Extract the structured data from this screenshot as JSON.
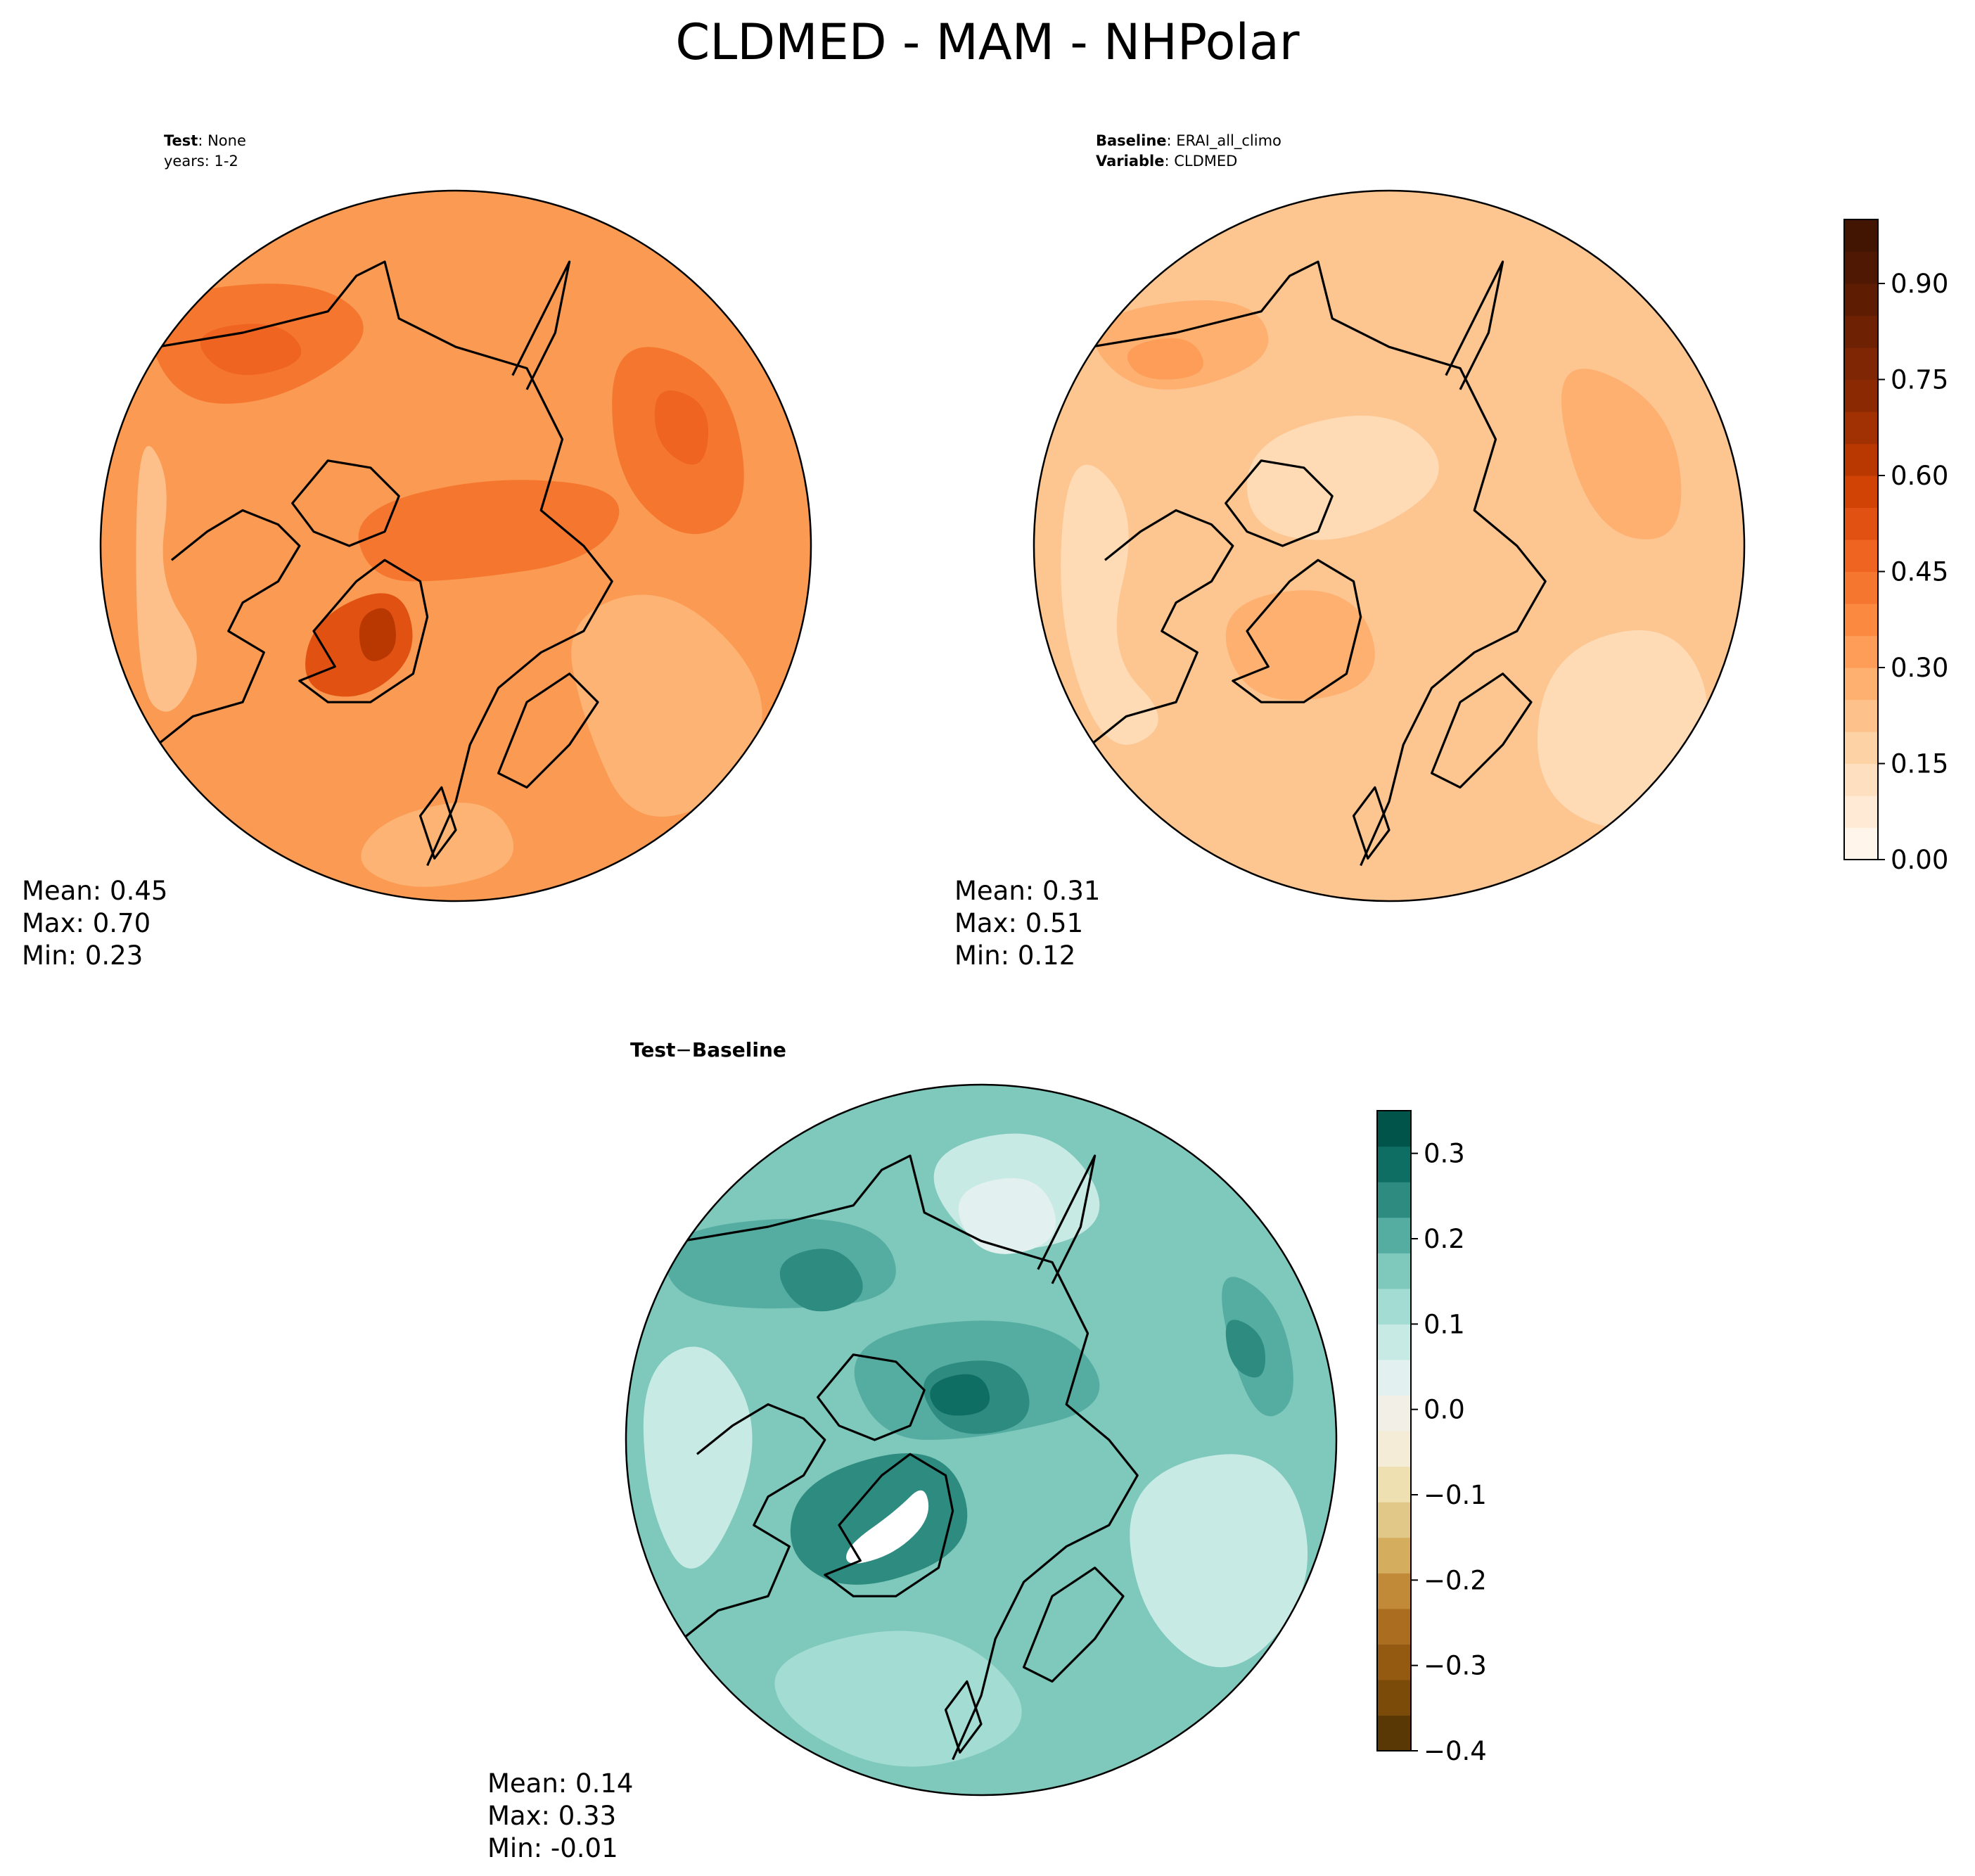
{
  "figure": {
    "title": "CLDMED - MAM - NHPolar"
  },
  "chart_data": [
    {
      "type": "heatmap",
      "projection": "north-polar-stereographic",
      "panel": "test",
      "header": {
        "label1": "Test",
        "value1": "None",
        "line2": "years: 1-2"
      },
      "stats": {
        "mean": "Mean:  0.45",
        "max": "Max:  0.70",
        "min": "Min:  0.23"
      },
      "values": {
        "mean": 0.45,
        "max": 0.7,
        "min": 0.23
      },
      "colormap": "Oranges",
      "shared_colorbar": "absolute"
    },
    {
      "type": "heatmap",
      "projection": "north-polar-stereographic",
      "panel": "baseline",
      "header": {
        "label1": "Baseline",
        "value1": "ERAI_all_climo",
        "label2": "Variable",
        "value2": "CLDMED"
      },
      "stats": {
        "mean": "Mean:  0.31",
        "max": "Max:  0.51",
        "min": "Min:  0.12"
      },
      "values": {
        "mean": 0.31,
        "max": 0.51,
        "min": 0.12
      },
      "colormap": "Oranges",
      "shared_colorbar": "absolute"
    },
    {
      "type": "heatmap",
      "projection": "north-polar-stereographic",
      "panel": "difference",
      "header": {
        "label1": "Test",
        "dash": "−",
        "label2": "Baseline"
      },
      "stats": {
        "mean": "Mean:  0.14",
        "max": "Max:  0.33",
        "min": "Min: -0.01"
      },
      "values": {
        "mean": 0.14,
        "max": 0.33,
        "min": -0.01
      },
      "colormap": "BrBG",
      "shared_colorbar": "difference"
    }
  ],
  "colorbars": {
    "absolute": {
      "range": [
        0,
        1
      ],
      "ticks": [
        {
          "value": 0.0,
          "label": "0.00"
        },
        {
          "value": 0.15,
          "label": "0.15"
        },
        {
          "value": 0.3,
          "label": "0.30"
        },
        {
          "value": 0.45,
          "label": "0.45"
        },
        {
          "value": 0.6,
          "label": "0.60"
        },
        {
          "value": 0.75,
          "label": "0.75"
        },
        {
          "value": 0.9,
          "label": "0.90"
        }
      ],
      "colors": [
        "#fff5eb",
        "#feead5",
        "#fee0c0",
        "#fdd2a5",
        "#fdc28b",
        "#fdb070",
        "#fd9d57",
        "#fb8940",
        "#f5772f",
        "#ee6420",
        "#e15212",
        "#d04305",
        "#b93802",
        "#a13003",
        "#8b2903",
        "#7f2704",
        "#6e2103",
        "#5e1c03",
        "#4f1802",
        "#421402"
      ]
    },
    "difference": {
      "range": [
        -0.4,
        0.35
      ],
      "ticks": [
        {
          "value": -0.4,
          "label": "−0.4"
        },
        {
          "value": -0.3,
          "label": "−0.3"
        },
        {
          "value": -0.2,
          "label": "−0.2"
        },
        {
          "value": -0.1,
          "label": "−0.1"
        },
        {
          "value": 0.0,
          "label": "0.0"
        },
        {
          "value": 0.1,
          "label": "0.1"
        },
        {
          "value": 0.2,
          "label": "0.2"
        },
        {
          "value": 0.3,
          "label": "0.3"
        }
      ],
      "colors": [
        "#5a3805",
        "#7b4b09",
        "#955a12",
        "#ab6d1f",
        "#c18a39",
        "#d4ad5e",
        "#e2c888",
        "#efe0b2",
        "#f4ecd6",
        "#f2efe6",
        "#e2f1ef",
        "#c8eae5",
        "#a3dcd3",
        "#7ec8bc",
        "#55ada2",
        "#2e8b80",
        "#0f6e63",
        "#01544a"
      ]
    }
  },
  "map_fields": {
    "test": {
      "background": "#fb9a52",
      "blobs": [
        {
          "color": "#fdc08a",
          "points": [
            [
              0.05,
              0.33
            ],
            [
              0.1,
              0.4
            ],
            [
              0.08,
              0.55
            ],
            [
              0.15,
              0.65
            ],
            [
              0.1,
              0.75
            ],
            [
              0.05,
              0.7
            ]
          ]
        },
        {
          "color": "#fdb373",
          "points": [
            [
              0.65,
              0.6
            ],
            [
              0.8,
              0.55
            ],
            [
              0.95,
              0.7
            ],
            [
              0.9,
              0.85
            ],
            [
              0.75,
              0.9
            ],
            [
              0.68,
              0.75
            ]
          ]
        },
        {
          "color": "#fdb373",
          "points": [
            [
              0.4,
              0.88
            ],
            [
              0.55,
              0.85
            ],
            [
              0.6,
              0.95
            ],
            [
              0.45,
              0.99
            ],
            [
              0.35,
              0.95
            ]
          ]
        },
        {
          "color": "#f5772f",
          "points": [
            [
              0.05,
              0.15
            ],
            [
              0.3,
              0.12
            ],
            [
              0.4,
              0.2
            ],
            [
              0.25,
              0.3
            ],
            [
              0.1,
              0.3
            ]
          ]
        },
        {
          "color": "#f5772f",
          "points": [
            [
              0.72,
              0.2
            ],
            [
              0.88,
              0.25
            ],
            [
              0.92,
              0.45
            ],
            [
              0.82,
              0.5
            ],
            [
              0.72,
              0.4
            ]
          ]
        },
        {
          "color": "#f5772f",
          "points": [
            [
              0.35,
              0.45
            ],
            [
              0.55,
              0.4
            ],
            [
              0.75,
              0.42
            ],
            [
              0.7,
              0.52
            ],
            [
              0.5,
              0.55
            ],
            [
              0.38,
              0.55
            ]
          ]
        },
        {
          "color": "#ee6420",
          "points": [
            [
              0.12,
              0.2
            ],
            [
              0.25,
              0.18
            ],
            [
              0.3,
              0.24
            ],
            [
              0.18,
              0.27
            ]
          ]
        },
        {
          "color": "#ee6420",
          "points": [
            [
              0.78,
              0.27
            ],
            [
              0.86,
              0.3
            ],
            [
              0.85,
              0.4
            ],
            [
              0.78,
              0.36
            ]
          ]
        },
        {
          "color": "#e15212",
          "points": [
            [
              0.3,
              0.6
            ],
            [
              0.42,
              0.55
            ],
            [
              0.45,
              0.65
            ],
            [
              0.37,
              0.72
            ],
            [
              0.28,
              0.7
            ]
          ]
        },
        {
          "color": "#b93802",
          "points": [
            [
              0.36,
              0.6
            ],
            [
              0.41,
              0.58
            ],
            [
              0.42,
              0.65
            ],
            [
              0.37,
              0.67
            ]
          ]
        }
      ]
    },
    "baseline": {
      "background": "#fdc590",
      "blobs": [
        {
          "color": "#fedbb5",
          "points": [
            [
              0.05,
              0.35
            ],
            [
              0.15,
              0.45
            ],
            [
              0.1,
              0.65
            ],
            [
              0.2,
              0.75
            ],
            [
              0.1,
              0.8
            ],
            [
              0.03,
              0.6
            ]
          ]
        },
        {
          "color": "#fedbb5",
          "points": [
            [
              0.72,
              0.65
            ],
            [
              0.9,
              0.6
            ],
            [
              0.97,
              0.75
            ],
            [
              0.85,
              0.92
            ],
            [
              0.7,
              0.85
            ]
          ]
        },
        {
          "color": "#fedbb5",
          "points": [
            [
              0.3,
              0.35
            ],
            [
              0.5,
              0.3
            ],
            [
              0.6,
              0.4
            ],
            [
              0.45,
              0.5
            ],
            [
              0.3,
              0.48
            ]
          ]
        },
        {
          "color": "#fdb070",
          "points": [
            [
              0.05,
              0.18
            ],
            [
              0.3,
              0.14
            ],
            [
              0.35,
              0.24
            ],
            [
              0.15,
              0.3
            ]
          ]
        },
        {
          "color": "#fdb070",
          "points": [
            [
              0.72,
              0.22
            ],
            [
              0.9,
              0.3
            ],
            [
              0.92,
              0.5
            ],
            [
              0.78,
              0.48
            ]
          ]
        },
        {
          "color": "#fdb070",
          "points": [
            [
              0.25,
              0.58
            ],
            [
              0.45,
              0.55
            ],
            [
              0.5,
              0.7
            ],
            [
              0.3,
              0.73
            ]
          ]
        },
        {
          "color": "#fd9d57",
          "points": [
            [
              0.12,
              0.22
            ],
            [
              0.22,
              0.2
            ],
            [
              0.25,
              0.26
            ],
            [
              0.15,
              0.27
            ]
          ]
        }
      ]
    },
    "difference": {
      "background": "#7ec8bc",
      "blobs": [
        {
          "color": "#c8eae5",
          "points": [
            [
              0.02,
              0.4
            ],
            [
              0.12,
              0.35
            ],
            [
              0.2,
              0.5
            ],
            [
              0.1,
              0.72
            ],
            [
              0.03,
              0.6
            ]
          ]
        },
        {
          "color": "#c8eae5",
          "points": [
            [
              0.7,
              0.55
            ],
            [
              0.92,
              0.5
            ],
            [
              0.98,
              0.7
            ],
            [
              0.85,
              0.85
            ],
            [
              0.72,
              0.75
            ]
          ]
        },
        {
          "color": "#c8eae5",
          "points": [
            [
              0.4,
              0.1
            ],
            [
              0.6,
              0.05
            ],
            [
              0.7,
              0.2
            ],
            [
              0.5,
              0.25
            ]
          ]
        },
        {
          "color": "#e2f1ef",
          "points": [
            [
              0.45,
              0.15
            ],
            [
              0.58,
              0.12
            ],
            [
              0.62,
              0.22
            ],
            [
              0.5,
              0.25
            ]
          ]
        },
        {
          "color": "#a3dcd3",
          "points": [
            [
              0.2,
              0.8
            ],
            [
              0.45,
              0.75
            ],
            [
              0.6,
              0.9
            ],
            [
              0.4,
              0.98
            ],
            [
              0.22,
              0.9
            ]
          ]
        },
        {
          "color": "#55ada2",
          "points": [
            [
              0.05,
              0.2
            ],
            [
              0.35,
              0.18
            ],
            [
              0.4,
              0.3
            ],
            [
              0.2,
              0.32
            ],
            [
              0.06,
              0.3
            ]
          ]
        },
        {
          "color": "#55ada2",
          "points": [
            [
              0.3,
              0.35
            ],
            [
              0.6,
              0.32
            ],
            [
              0.7,
              0.45
            ],
            [
              0.5,
              0.5
            ],
            [
              0.35,
              0.5
            ]
          ]
        },
        {
          "color": "#55ada2",
          "points": [
            [
              0.82,
              0.25
            ],
            [
              0.92,
              0.3
            ],
            [
              0.95,
              0.45
            ],
            [
              0.88,
              0.48
            ]
          ]
        },
        {
          "color": "#2e8b80",
          "points": [
            [
              0.2,
              0.25
            ],
            [
              0.3,
              0.22
            ],
            [
              0.35,
              0.3
            ],
            [
              0.25,
              0.33
            ]
          ]
        },
        {
          "color": "#2e8b80",
          "points": [
            [
              0.4,
              0.4
            ],
            [
              0.55,
              0.38
            ],
            [
              0.58,
              0.48
            ],
            [
              0.45,
              0.5
            ]
          ]
        },
        {
          "color": "#2e8b80",
          "points": [
            [
              0.25,
              0.55
            ],
            [
              0.45,
              0.5
            ],
            [
              0.5,
              0.65
            ],
            [
              0.32,
              0.72
            ],
            [
              0.22,
              0.66
            ]
          ]
        },
        {
          "color": "#2e8b80",
          "points": [
            [
              0.84,
              0.32
            ],
            [
              0.9,
              0.35
            ],
            [
              0.9,
              0.42
            ],
            [
              0.85,
              0.4
            ]
          ]
        },
        {
          "color": "#0f6e63",
          "points": [
            [
              0.42,
              0.42
            ],
            [
              0.5,
              0.4
            ],
            [
              0.52,
              0.46
            ],
            [
              0.44,
              0.47
            ]
          ]
        },
        {
          "color": "#ffffff",
          "points": [
            [
              0.31,
              0.65
            ],
            [
              0.38,
              0.6
            ],
            [
              0.42,
              0.56
            ],
            [
              0.43,
              0.61
            ],
            [
              0.38,
              0.66
            ],
            [
              0.31,
              0.68
            ]
          ]
        }
      ]
    }
  },
  "coastline": {
    "stroke": "#000000",
    "greenland": [
      [
        0.33,
        0.67
      ],
      [
        0.3,
        0.62
      ],
      [
        0.36,
        0.55
      ],
      [
        0.4,
        0.52
      ],
      [
        0.45,
        0.55
      ],
      [
        0.46,
        0.6
      ],
      [
        0.44,
        0.68
      ],
      [
        0.38,
        0.72
      ],
      [
        0.32,
        0.72
      ],
      [
        0.28,
        0.69
      ]
    ],
    "canada": [
      [
        0.1,
        0.52
      ],
      [
        0.15,
        0.48
      ],
      [
        0.2,
        0.45
      ],
      [
        0.25,
        0.47
      ],
      [
        0.28,
        0.5
      ],
      [
        0.25,
        0.55
      ],
      [
        0.2,
        0.58
      ],
      [
        0.18,
        0.62
      ],
      [
        0.23,
        0.65
      ],
      [
        0.2,
        0.72
      ],
      [
        0.13,
        0.74
      ],
      [
        0.08,
        0.78
      ]
    ],
    "arctic_islands": [
      [
        0.27,
        0.44
      ],
      [
        0.32,
        0.38
      ],
      [
        0.38,
        0.39
      ],
      [
        0.42,
        0.43
      ],
      [
        0.4,
        0.48
      ],
      [
        0.35,
        0.5
      ],
      [
        0.3,
        0.48
      ]
    ],
    "eurasia": [
      [
        0.08,
        0.22
      ],
      [
        0.2,
        0.2
      ],
      [
        0.32,
        0.17
      ],
      [
        0.36,
        0.12
      ],
      [
        0.4,
        0.1
      ],
      [
        0.42,
        0.18
      ],
      [
        0.5,
        0.22
      ],
      [
        0.6,
        0.25
      ],
      [
        0.65,
        0.35
      ],
      [
        0.62,
        0.45
      ],
      [
        0.68,
        0.5
      ],
      [
        0.72,
        0.55
      ],
      [
        0.68,
        0.62
      ],
      [
        0.62,
        0.65
      ],
      [
        0.56,
        0.7
      ],
      [
        0.52,
        0.78
      ],
      [
        0.5,
        0.86
      ],
      [
        0.46,
        0.95
      ]
    ],
    "scandinavia": [
      [
        0.56,
        0.82
      ],
      [
        0.6,
        0.72
      ],
      [
        0.66,
        0.68
      ],
      [
        0.7,
        0.72
      ],
      [
        0.66,
        0.78
      ],
      [
        0.6,
        0.84
      ]
    ],
    "novaya_zemlya": [
      [
        0.58,
        0.26
      ],
      [
        0.62,
        0.18
      ],
      [
        0.66,
        0.1
      ],
      [
        0.64,
        0.2
      ],
      [
        0.6,
        0.28
      ]
    ],
    "uk": [
      [
        0.45,
        0.88
      ],
      [
        0.48,
        0.84
      ],
      [
        0.5,
        0.9
      ],
      [
        0.47,
        0.94
      ]
    ]
  }
}
